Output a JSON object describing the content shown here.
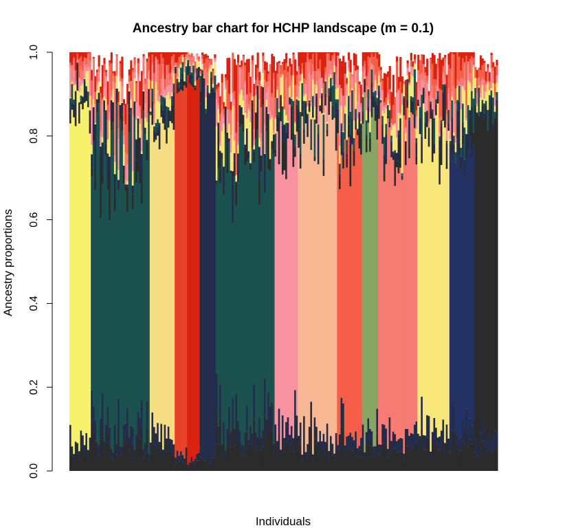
{
  "chart_data": {
    "type": "bar",
    "stacked": true,
    "title": "Ancestry bar chart for HCHP landscape (m = 0.1)",
    "xlabel": "Individuals",
    "ylabel": "Ancestry proportions",
    "ylim": [
      0,
      1
    ],
    "yticks": [
      "0.0",
      "0.2",
      "0.4",
      "0.6",
      "0.8",
      "1.0"
    ],
    "n_individuals": 240,
    "grid": false,
    "legend": "none",
    "cluster_colors": {
      "yellow": "#F7F26B",
      "darkgreen": "#1B514F",
      "khaki": "#F4DD83",
      "redorange": "#E5432A",
      "red": "#D92310",
      "navy": "#232D4A",
      "pink": "#F892A0",
      "peach": "#F8B894",
      "tomato": "#F55E48",
      "sage": "#87A664",
      "salmon": "#F67B72",
      "lightyellow": "#F7E77A",
      "blue": "#233263",
      "charcoal": "#2B2B2B"
    },
    "groups": [
      {
        "main": "yellow",
        "count": 12,
        "main_proportion_range": [
          0.72,
          0.86
        ]
      },
      {
        "main": "darkgreen",
        "count": 33,
        "main_proportion_range": [
          0.45,
          0.82
        ]
      },
      {
        "main": "khaki",
        "count": 14,
        "main_proportion_range": [
          0.68,
          0.8
        ]
      },
      {
        "main": "redorange",
        "count": 7,
        "main_proportion_range": [
          0.85,
          0.93
        ]
      },
      {
        "main": "red",
        "count": 7,
        "main_proportion_range": [
          0.88,
          0.94
        ]
      },
      {
        "main": "navy",
        "count": 9,
        "main_proportion_range": [
          0.8,
          0.9
        ]
      },
      {
        "main": "darkgreen",
        "count": 33,
        "main_proportion_range": [
          0.4,
          0.8
        ]
      },
      {
        "main": "pink",
        "count": 13,
        "main_proportion_range": [
          0.55,
          0.8
        ]
      },
      {
        "main": "peach",
        "count": 22,
        "main_proportion_range": [
          0.6,
          0.82
        ]
      },
      {
        "main": "tomato",
        "count": 14,
        "main_proportion_range": [
          0.55,
          0.78
        ]
      },
      {
        "main": "sage",
        "count": 9,
        "main_proportion_range": [
          0.6,
          0.88
        ]
      },
      {
        "main": "salmon",
        "count": 22,
        "main_proportion_range": [
          0.58,
          0.82
        ]
      },
      {
        "main": "lightyellow",
        "count": 18,
        "main_proportion_range": [
          0.55,
          0.8
        ]
      },
      {
        "main": "blue",
        "count": 14,
        "main_proportion_range": [
          0.58,
          0.75
        ]
      },
      {
        "main": "charcoal",
        "count": 13,
        "main_proportion_range": [
          0.72,
          0.82
        ]
      }
    ],
    "minor_component_order": [
      "charcoal",
      "navy",
      "darkgreen",
      "lightyellow",
      "pink",
      "salmon",
      "tomato",
      "red"
    ]
  }
}
